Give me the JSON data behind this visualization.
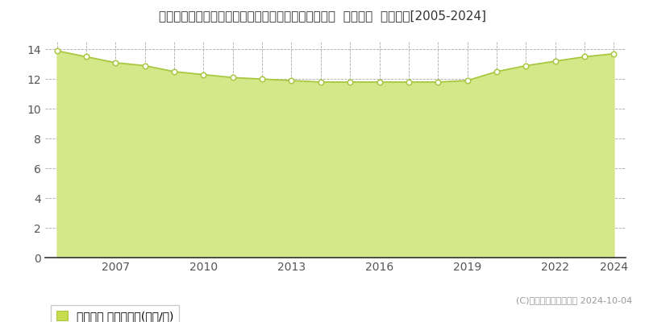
{
  "title": "佐賀県三養基郡みやき町大字白壁字一本栗５５０番５  基準地価  地価推移[2005-2024]",
  "years": [
    2005,
    2006,
    2007,
    2008,
    2009,
    2010,
    2011,
    2012,
    2013,
    2014,
    2015,
    2016,
    2017,
    2018,
    2019,
    2020,
    2021,
    2022,
    2023,
    2024
  ],
  "values": [
    13.9,
    13.5,
    13.1,
    12.9,
    12.5,
    12.3,
    12.1,
    12.0,
    11.9,
    11.8,
    11.8,
    11.8,
    11.8,
    11.8,
    11.9,
    12.5,
    12.9,
    13.2,
    13.5,
    13.7
  ],
  "line_color": "#a8c840",
  "fill_color": "#d4e88a",
  "marker_facecolor": "#ffffff",
  "marker_edgecolor": "#a8c840",
  "background_color": "#ffffff",
  "plot_bg_color": "#ffffff",
  "grid_color_h": "#aaaaaa",
  "grid_color_v": "#aaaaaa",
  "ylim": [
    0,
    14.5
  ],
  "yticks": [
    0,
    2,
    4,
    6,
    8,
    10,
    12,
    14
  ],
  "xticks": [
    2007,
    2010,
    2013,
    2016,
    2019,
    2022,
    2024
  ],
  "all_years_for_vgrid": [
    2005,
    2006,
    2007,
    2008,
    2009,
    2010,
    2011,
    2012,
    2013,
    2014,
    2015,
    2016,
    2017,
    2018,
    2019,
    2020,
    2021,
    2022,
    2023,
    2024
  ],
  "legend_label": "基準地価 平均坪単価(万円/坪)",
  "legend_marker_color": "#c8dc50",
  "legend_marker_edgecolor": "#a8c840",
  "copyright_text": "(C)土地価格ドットコム 2024-10-04",
  "title_fontsize": 11,
  "tick_fontsize": 10,
  "legend_fontsize": 10
}
